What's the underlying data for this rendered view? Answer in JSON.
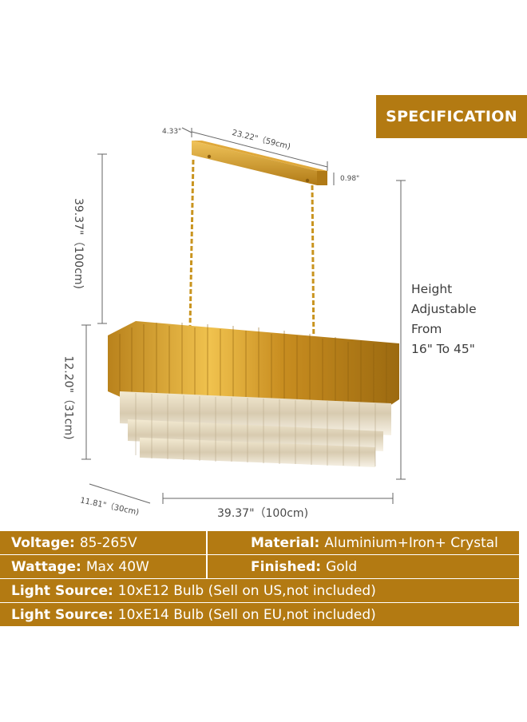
{
  "badge": {
    "label": "SPECIFICATION"
  },
  "dimensions": {
    "canopy_depth": "4.33\"",
    "canopy_length": "23.22\"（59cm)",
    "canopy_height": "0.98\"",
    "chain_length": "39.37\"（100cm)",
    "body_height": "12.20\"（31cm)",
    "body_depth": "11.81\"（30cm)",
    "body_length": "39.37\"（100cm)"
  },
  "height_note": {
    "line1": "Height",
    "line2": "Adjustable",
    "line3": "From",
    "line4": "16\" To 45\""
  },
  "specs": {
    "voltage_label": "Voltage:",
    "voltage_value": "85-265V",
    "material_label": "Material:",
    "material_value": "Aluminium+Iron+ Crystal",
    "wattage_label": "Wattage:",
    "wattage_value": "Max 40W",
    "finished_label": "Finished:",
    "finished_value": "Gold",
    "light_source_label": "Light Source:",
    "light_source_us_value": "10xE12 Bulb (Sell on US,not included)",
    "light_source_eu_value": "10xE14 Bulb (Sell on EU,not included)"
  },
  "colors": {
    "accent": "#b37a12",
    "gold": "#d9a02a",
    "crystal": "#e8dcc4"
  }
}
